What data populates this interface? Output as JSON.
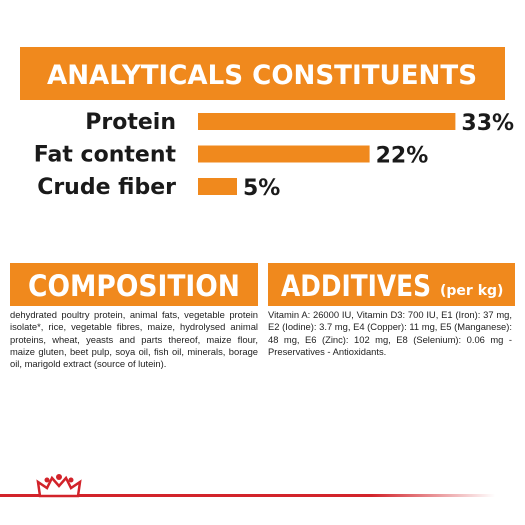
{
  "chart_data": {
    "type": "bar",
    "title": "ANALYTICALS CONSTITUENTS",
    "categories": [
      "Protein",
      "Fat content",
      "Crude fiber"
    ],
    "values": [
      33,
      22,
      5
    ],
    "value_labels": [
      "33%",
      "22%",
      "5%"
    ],
    "color": "#f0891d"
  },
  "composition": {
    "title": "COMPOSITION",
    "text": "dehydrated poultry protein, animal fats, vegetable protein isolate*, rice, vegetable fibres, maize, hydrolysed animal proteins, wheat, yeasts and parts thereof, maize flour, maize gluten, beet pulp, soya oil, fish oil, minerals, borage oil, marigold extract (source of lutein)."
  },
  "additives": {
    "title": "ADDITIVES",
    "unit": "(per kg)",
    "text": "Vitamin A: 26000 IU, Vitamin D3: 700 IU, E1 (Iron): 37 mg, E2 (Iodine): 3.7 mg, E4 (Copper): 11 mg, E5 (Manganese): 48 mg, E6 (Zinc): 102 mg, E8 (Selenium): 0.06 mg - Preservatives - Antioxidants."
  }
}
